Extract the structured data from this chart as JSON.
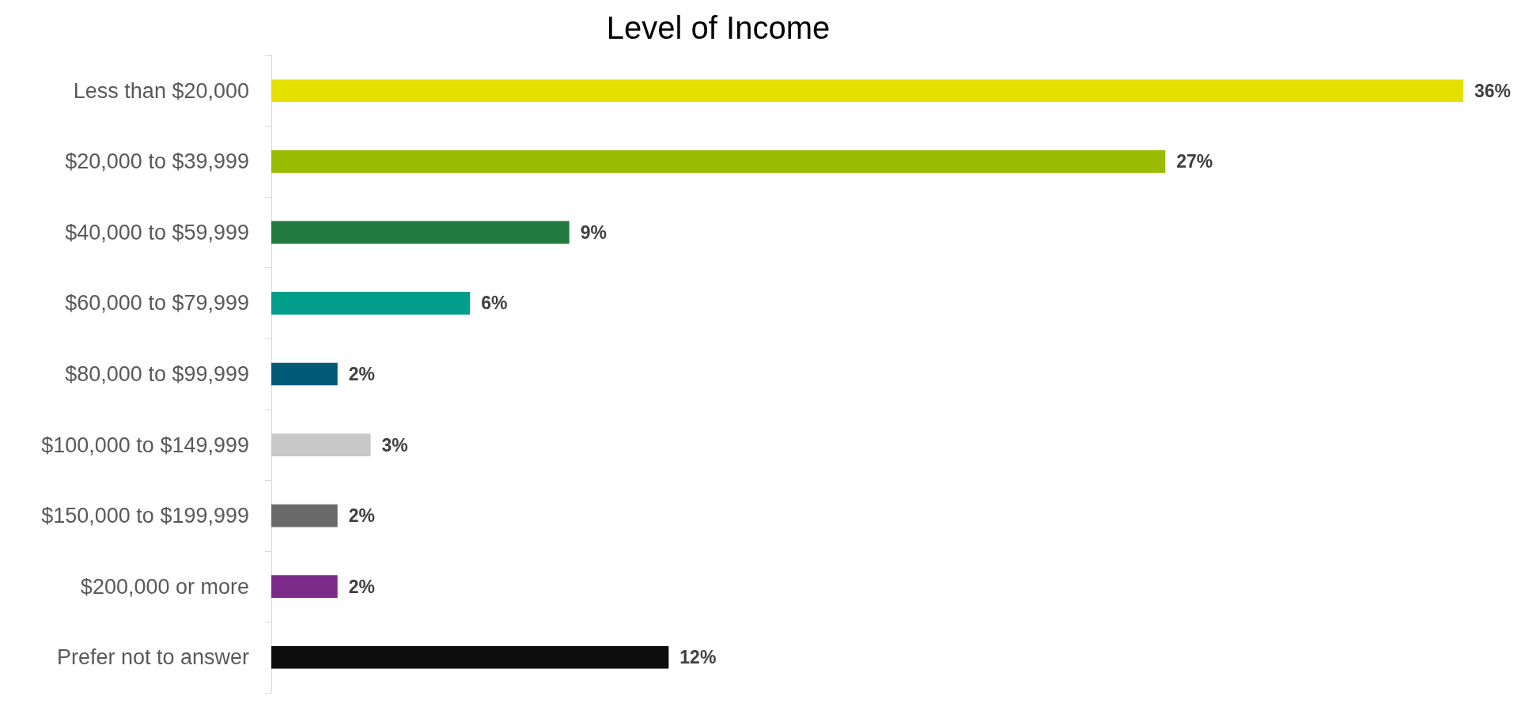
{
  "chart_data": {
    "type": "bar",
    "orientation": "horizontal",
    "title": "Level of Income",
    "categories": [
      "Less than $20,000",
      "$20,000 to $39,999",
      "$40,000 to $59,999",
      "$60,000 to $79,999",
      "$80,000 to $99,999",
      "$100,000 to $149,999",
      "$150,000 to $199,999",
      "$200,000 or more",
      "Prefer not to answer"
    ],
    "values": [
      36,
      27,
      9,
      6,
      2,
      3,
      2,
      2,
      12
    ],
    "value_labels": [
      "36%",
      "27%",
      "9%",
      "6%",
      "2%",
      "3%",
      "2%",
      "2%",
      "12%"
    ],
    "colors": [
      "#e6e000",
      "#9bbb00",
      "#217a3f",
      "#009e8a",
      "#005a78",
      "#c8c8c8",
      "#6a6a6a",
      "#7d2b8b",
      "#0d0d0d"
    ]
  }
}
